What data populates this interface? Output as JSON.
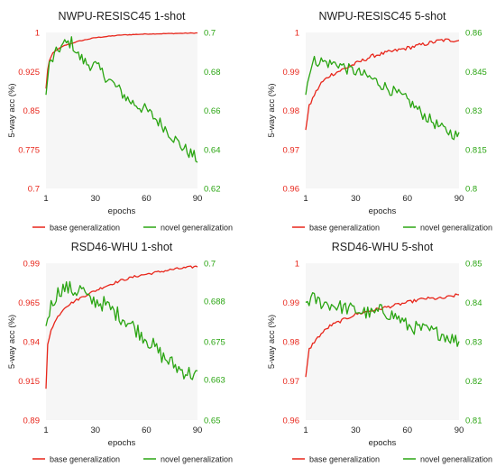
{
  "colors": {
    "base": "#e8261b",
    "novel": "#2aa512",
    "plot_bg": "#f6f6f6",
    "text": "#222222"
  },
  "chart_data": [
    {
      "type": "line",
      "title": "NWPU-RESISC45 1-shot",
      "xlabel": "epochs",
      "ylabel": "5-way acc (%)",
      "xlim": [
        1,
        90
      ],
      "xticks": [
        "1",
        "30",
        "60",
        "90"
      ],
      "ylim_left": [
        0.7,
        1.0
      ],
      "yticks_left": [
        "0.7",
        "0.775",
        "0.85",
        "0.925",
        "1"
      ],
      "ylim_right": [
        0.62,
        0.7
      ],
      "yticks_right": [
        "0.62",
        "0.64",
        "0.66",
        "0.68",
        "0.7"
      ],
      "legend": [
        "base generalization",
        "novel generalization"
      ],
      "series": [
        {
          "name": "base generalization",
          "axis": "left",
          "x": [
            1,
            2,
            3,
            5,
            8,
            12,
            20,
            30,
            45,
            60,
            75,
            90
          ],
          "values": [
            0.892,
            0.928,
            0.946,
            0.96,
            0.968,
            0.975,
            0.983,
            0.99,
            0.995,
            0.997,
            0.998,
            0.999
          ]
        },
        {
          "name": "novel generalization",
          "axis": "right",
          "x": [
            1,
            2,
            3,
            6,
            9,
            12,
            16,
            20,
            25,
            30,
            40,
            50,
            60,
            70,
            80,
            90
          ],
          "values": [
            0.668,
            0.677,
            0.683,
            0.688,
            0.692,
            0.694,
            0.695,
            0.688,
            0.684,
            0.683,
            0.674,
            0.665,
            0.66,
            0.652,
            0.642,
            0.635
          ]
        }
      ]
    },
    {
      "type": "line",
      "title": "NWPU-RESISC45 5-shot",
      "xlabel": "epochs",
      "ylabel": "5-way acc (%)",
      "xlim": [
        1,
        90
      ],
      "xticks": [
        "1",
        "30",
        "60",
        "90"
      ],
      "ylim_left": [
        0.96,
        1.0
      ],
      "yticks_left": [
        "0.96",
        "0.97",
        "0.98",
        "0.99",
        "1"
      ],
      "ylim_right": [
        0.8,
        0.86
      ],
      "yticks_right": [
        "0.8",
        "0.815",
        "0.83",
        "0.845",
        "0.86"
      ],
      "legend": [
        "base generalization",
        "novel generalization"
      ],
      "series": [
        {
          "name": "base generalization",
          "axis": "left",
          "x": [
            1,
            3,
            6,
            10,
            15,
            20,
            30,
            40,
            50,
            60,
            70,
            80,
            90
          ],
          "values": [
            0.975,
            0.981,
            0.984,
            0.987,
            0.989,
            0.99,
            0.992,
            0.994,
            0.995,
            0.996,
            0.997,
            0.998,
            0.998
          ]
        },
        {
          "name": "novel generalization",
          "axis": "right",
          "x": [
            1,
            3,
            6,
            10,
            15,
            20,
            25,
            30,
            40,
            50,
            60,
            70,
            80,
            90
          ],
          "values": [
            0.836,
            0.845,
            0.849,
            0.849,
            0.848,
            0.848,
            0.846,
            0.845,
            0.842,
            0.838,
            0.834,
            0.828,
            0.823,
            0.82
          ]
        }
      ]
    },
    {
      "type": "line",
      "title": "RSD46-WHU 1-shot",
      "xlabel": "epochs",
      "ylabel": "5-way acc (%)",
      "xlim": [
        1,
        90
      ],
      "xticks": [
        "1",
        "30",
        "60",
        "90"
      ],
      "ylim_left": [
        0.89,
        0.99
      ],
      "yticks_left": [
        "0.89",
        "0.915",
        "0.94",
        "0.965",
        "0.99"
      ],
      "ylim_right": [
        0.65,
        0.7
      ],
      "yticks_right": [
        "0.65",
        "0.663",
        "0.675",
        "0.688",
        "0.7"
      ],
      "legend": [
        "base generalization",
        "novel generalization"
      ],
      "series": [
        {
          "name": "base generalization",
          "axis": "left",
          "x": [
            1,
            2,
            4,
            8,
            12,
            18,
            25,
            35,
            45,
            55,
            65,
            75,
            90
          ],
          "values": [
            0.91,
            0.938,
            0.948,
            0.956,
            0.962,
            0.966,
            0.97,
            0.975,
            0.979,
            0.982,
            0.984,
            0.986,
            0.988
          ]
        },
        {
          "name": "novel generalization",
          "axis": "right",
          "x": [
            1,
            3,
            6,
            10,
            14,
            18,
            22,
            26,
            30,
            35,
            40,
            50,
            60,
            70,
            80,
            90
          ],
          "values": [
            0.68,
            0.685,
            0.689,
            0.692,
            0.692,
            0.691,
            0.692,
            0.688,
            0.688,
            0.687,
            0.685,
            0.681,
            0.676,
            0.67,
            0.666,
            0.664
          ]
        }
      ]
    },
    {
      "type": "line",
      "title": "RSD46-WHU 5-shot",
      "xlabel": "epochs",
      "ylabel": "5-way acc (%)",
      "xlim": [
        1,
        90
      ],
      "xticks": [
        "1",
        "30",
        "60",
        "90"
      ],
      "ylim_left": [
        0.96,
        1.0
      ],
      "yticks_left": [
        "0.96",
        "0.97",
        "0.98",
        "0.99",
        "1"
      ],
      "ylim_right": [
        0.81,
        0.85
      ],
      "yticks_right": [
        "0.81",
        "0.82",
        "0.83",
        "0.84",
        "0.85"
      ],
      "legend": [
        "base generalization",
        "novel generalization"
      ],
      "series": [
        {
          "name": "base generalization",
          "axis": "left",
          "x": [
            1,
            3,
            6,
            10,
            15,
            20,
            30,
            40,
            50,
            60,
            70,
            80,
            90
          ],
          "values": [
            0.971,
            0.978,
            0.98,
            0.982,
            0.984,
            0.985,
            0.987,
            0.988,
            0.989,
            0.99,
            0.991,
            0.991,
            0.992
          ]
        },
        {
          "name": "novel generalization",
          "axis": "right",
          "x": [
            1,
            5,
            10,
            20,
            30,
            40,
            45,
            50,
            55,
            60,
            70,
            80,
            85,
            90
          ],
          "values": [
            0.84,
            0.841,
            0.84,
            0.839,
            0.838,
            0.837,
            0.838,
            0.837,
            0.836,
            0.834,
            0.833,
            0.832,
            0.831,
            0.83
          ]
        }
      ]
    }
  ]
}
